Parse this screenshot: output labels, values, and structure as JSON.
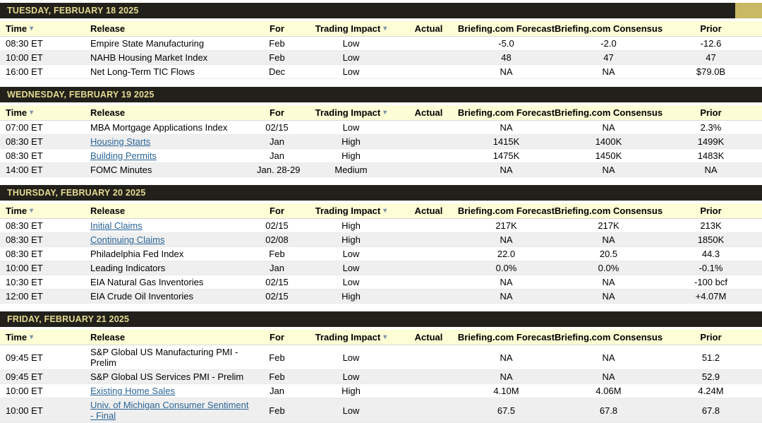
{
  "colors": {
    "day_header_bg": "#21201a",
    "day_header_text": "#e5da92",
    "column_header_bg": "#fdfdd6",
    "row_shade_bg": "#efefef",
    "link_color": "#2a6496",
    "arrow_color": "#7e95a8",
    "corner_decoration": "#c9b964",
    "page_bg": "#cfcfcf"
  },
  "icons": {
    "sort_arrow": "▾",
    "filter_arrow": "▾"
  },
  "columns": [
    {
      "label": "Time",
      "align": "left",
      "arrow": true
    },
    {
      "label": "Release",
      "align": "left",
      "arrow": false
    },
    {
      "label": "For",
      "align": "center",
      "arrow": false
    },
    {
      "label": "Trading Impact",
      "align": "center",
      "arrow": true
    },
    {
      "label": "Actual",
      "align": "center",
      "arrow": false
    },
    {
      "label": "Briefing.com Forecast",
      "align": "center",
      "arrow": false
    },
    {
      "label": "Briefing.com Consensus",
      "align": "center",
      "arrow": false
    },
    {
      "label": "Prior",
      "align": "center",
      "arrow": false
    }
  ],
  "sections": [
    {
      "day_header": "TUESDAY, FEBRUARY 18 2025",
      "rows": [
        {
          "time": "08:30 ET",
          "release": "Empire State Manufacturing",
          "link": false,
          "for": "Feb",
          "impact": "Low",
          "actual": "",
          "forecast": "-5.0",
          "consensus": "-2.0",
          "prior": "-12.6"
        },
        {
          "time": "10:00 ET",
          "release": "NAHB Housing Market Index",
          "link": false,
          "for": "Feb",
          "impact": "Low",
          "actual": "",
          "forecast": "48",
          "consensus": "47",
          "prior": "47"
        },
        {
          "time": "16:00 ET",
          "release": "Net Long-Term TIC Flows",
          "link": false,
          "for": "Dec",
          "impact": "Low",
          "actual": "",
          "forecast": "NA",
          "consensus": "NA",
          "prior": "$79.0B"
        }
      ]
    },
    {
      "day_header": "WEDNESDAY, FEBRUARY 19 2025",
      "rows": [
        {
          "time": "07:00 ET",
          "release": "MBA Mortgage Applications Index",
          "link": false,
          "for": "02/15",
          "impact": "Low",
          "actual": "",
          "forecast": "NA",
          "consensus": "NA",
          "prior": "2.3%"
        },
        {
          "time": "08:30 ET",
          "release": "Housing Starts",
          "link": true,
          "for": "Jan",
          "impact": "High",
          "actual": "",
          "forecast": "1415K",
          "consensus": "1400K",
          "prior": "1499K"
        },
        {
          "time": "08:30 ET",
          "release": "Building Permits",
          "link": true,
          "for": "Jan",
          "impact": "High",
          "actual": "",
          "forecast": "1475K",
          "consensus": "1450K",
          "prior": "1483K"
        },
        {
          "time": "14:00 ET",
          "release": "FOMC Minutes",
          "link": false,
          "for": "Jan. 28-29",
          "impact": "Medium",
          "actual": "",
          "forecast": "NA",
          "consensus": "NA",
          "prior": "NA"
        }
      ]
    },
    {
      "day_header": "THURSDAY, FEBRUARY 20 2025",
      "rows": [
        {
          "time": "08:30 ET",
          "release": "Initial Claims",
          "link": true,
          "for": "02/15",
          "impact": "High",
          "actual": "",
          "forecast": "217K",
          "consensus": "217K",
          "prior": "213K"
        },
        {
          "time": "08:30 ET",
          "release": "Continuing Claims",
          "link": true,
          "for": "02/08",
          "impact": "High",
          "actual": "",
          "forecast": "NA",
          "consensus": "NA",
          "prior": "1850K"
        },
        {
          "time": "08:30 ET",
          "release": "Philadelphia Fed Index",
          "link": false,
          "for": "Feb",
          "impact": "Low",
          "actual": "",
          "forecast": "22.0",
          "consensus": "20.5",
          "prior": "44.3"
        },
        {
          "time": "10:00 ET",
          "release": "Leading Indicators",
          "link": false,
          "for": "Jan",
          "impact": "Low",
          "actual": "",
          "forecast": "0.0%",
          "consensus": "0.0%",
          "prior": "-0.1%"
        },
        {
          "time": "10:30 ET",
          "release": "EIA Natural Gas Inventories",
          "link": false,
          "for": "02/15",
          "impact": "Low",
          "actual": "",
          "forecast": "NA",
          "consensus": "NA",
          "prior": "-100 bcf"
        },
        {
          "time": "12:00 ET",
          "release": "EIA Crude Oil Inventories",
          "link": false,
          "for": "02/15",
          "impact": "High",
          "actual": "",
          "forecast": "NA",
          "consensus": "NA",
          "prior": "+4.07M"
        }
      ]
    },
    {
      "day_header": "FRIDAY, FEBRUARY 21 2025",
      "rows": [
        {
          "time": "09:45 ET",
          "release": "S&P Global US Manufacturing PMI - Prelim",
          "link": false,
          "for": "Feb",
          "impact": "Low",
          "actual": "",
          "forecast": "NA",
          "consensus": "NA",
          "prior": "51.2"
        },
        {
          "time": "09:45 ET",
          "release": "S&P Global US Services PMI - Prelim",
          "link": false,
          "for": "Feb",
          "impact": "Low",
          "actual": "",
          "forecast": "NA",
          "consensus": "NA",
          "prior": "52.9"
        },
        {
          "time": "10:00 ET",
          "release": "Existing Home Sales",
          "link": true,
          "for": "Jan",
          "impact": "High",
          "actual": "",
          "forecast": "4.10M",
          "consensus": "4.06M",
          "prior": "4.24M"
        },
        {
          "time": "10:00 ET",
          "release": "Univ. of Michigan Consumer Sentiment - Final",
          "link": true,
          "for": "Feb",
          "impact": "Low",
          "actual": "",
          "forecast": "67.5",
          "consensus": "67.8",
          "prior": "67.8"
        }
      ]
    }
  ]
}
